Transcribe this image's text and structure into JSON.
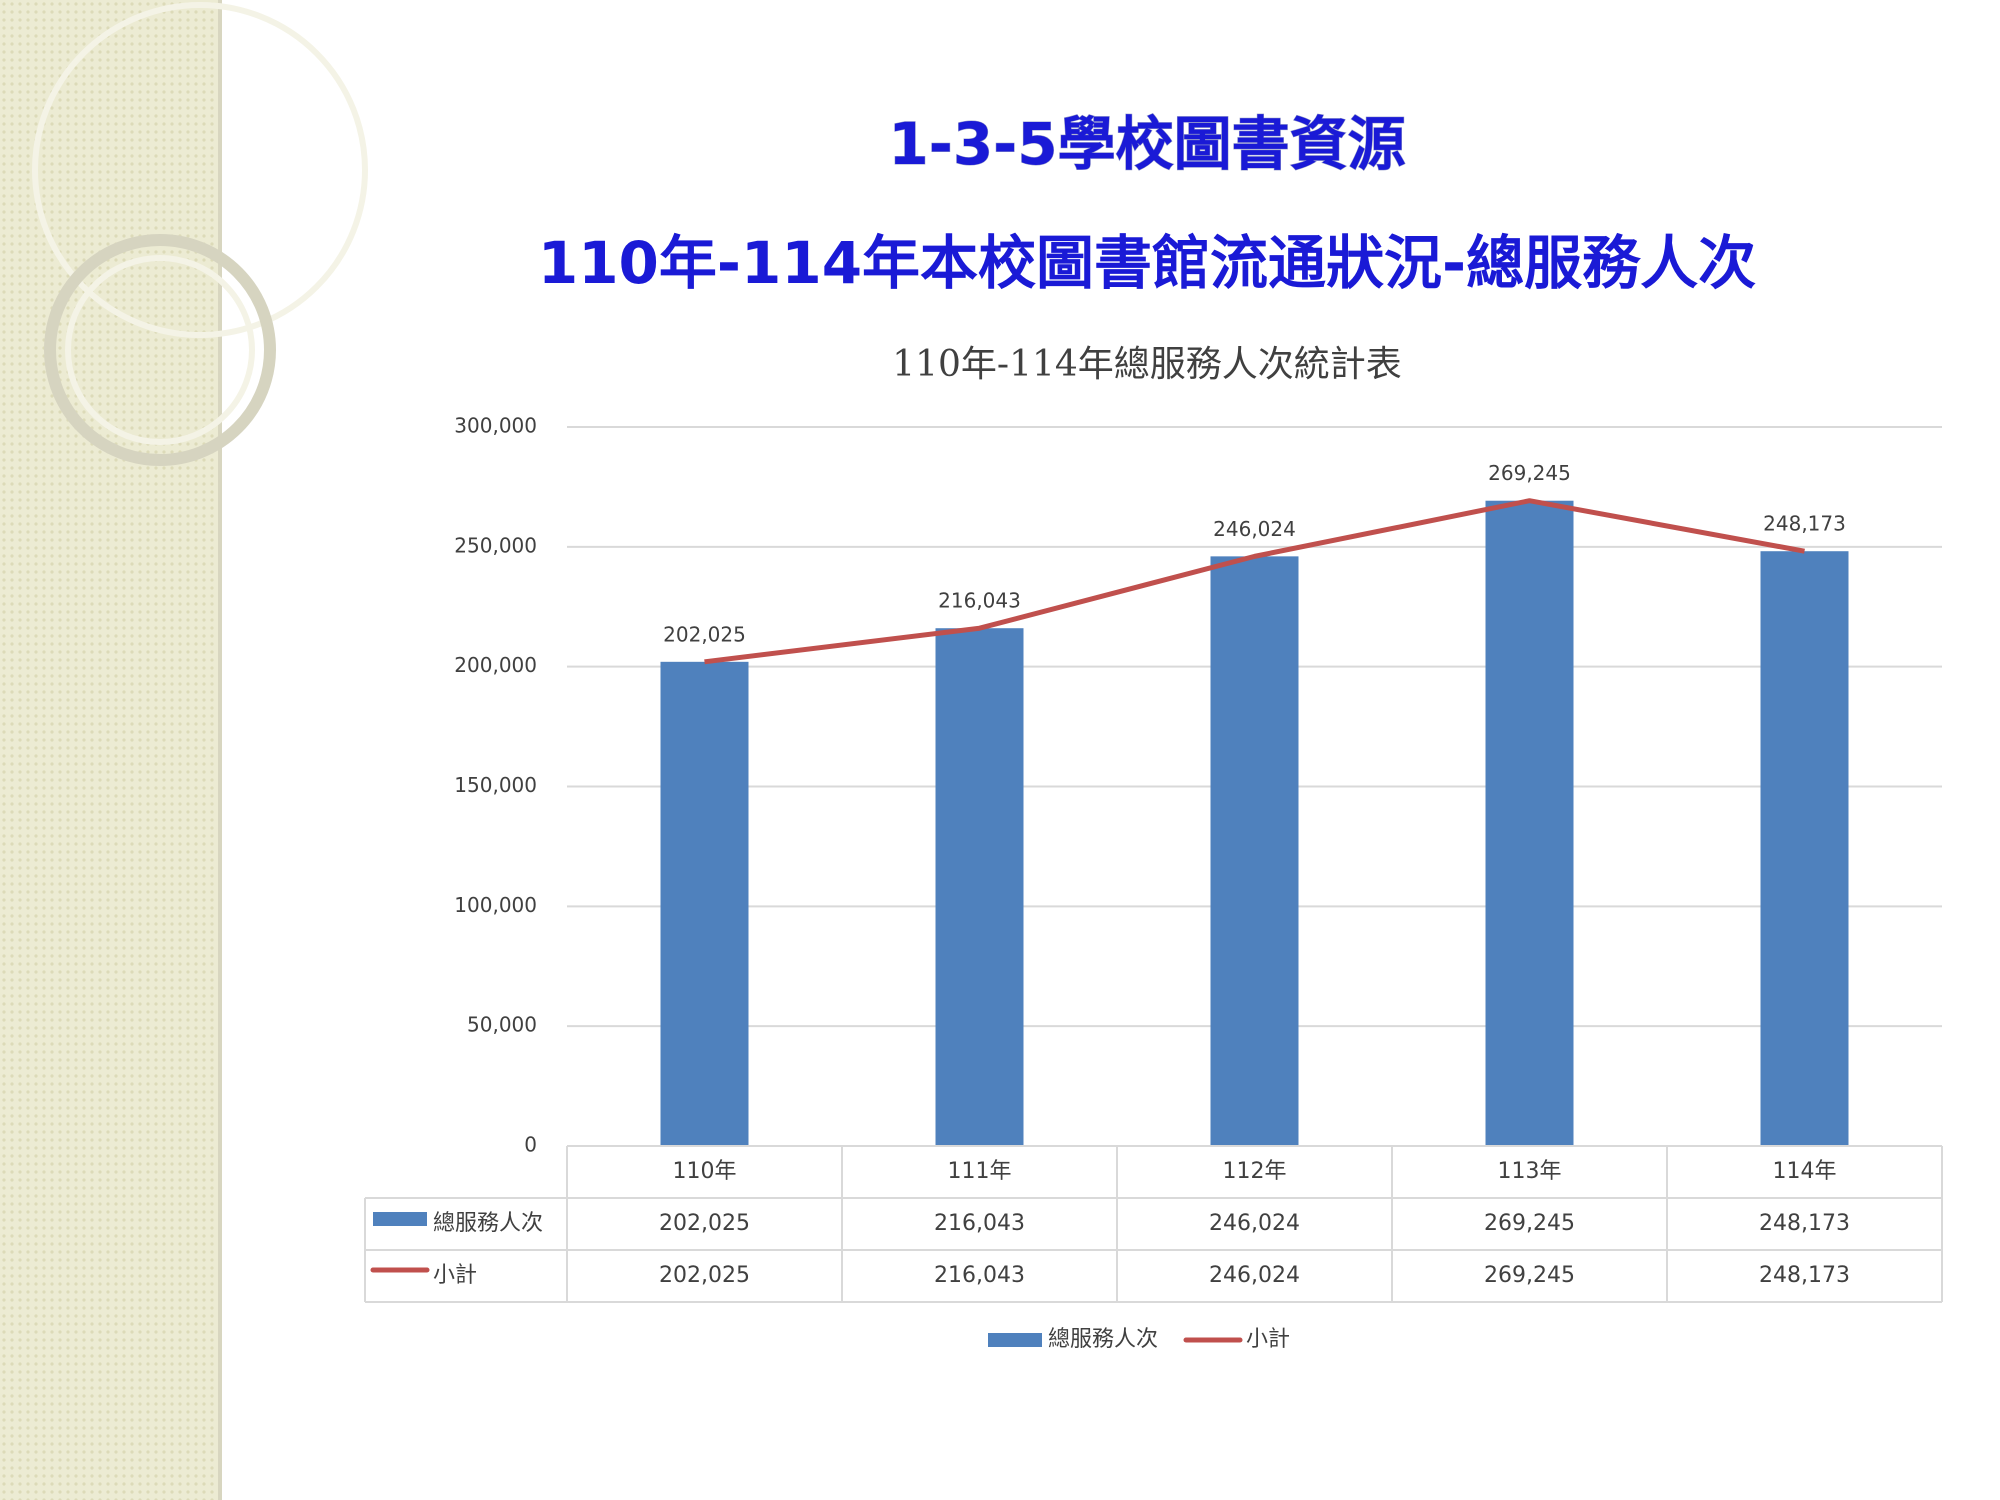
{
  "slide": {
    "title": "1-3-5學校圖書資源",
    "subtitle": "110年-114年本校圖書館流通狀況-總服務人次"
  },
  "chart_data": {
    "type": "bar",
    "title": "110年-114年總服務人次統計表",
    "categories": [
      "110年",
      "111年",
      "112年",
      "113年",
      "114年"
    ],
    "series": [
      {
        "name": "總服務人次",
        "type": "bar",
        "color": "#4f81bd",
        "values": [
          202025,
          216043,
          246024,
          269245,
          248173
        ],
        "value_labels": [
          "202,025",
          "216,043",
          "246,024",
          "269,245",
          "248,173"
        ]
      },
      {
        "name": "小計",
        "type": "line",
        "color": "#c0504d",
        "values": [
          202025,
          216043,
          246024,
          269245,
          248173
        ],
        "value_labels": [
          "202,025",
          "216,043",
          "246,024",
          "269,245",
          "248,173"
        ]
      }
    ],
    "ylim": [
      0,
      300000
    ],
    "yticks": [
      0,
      {
        "value": 50000,
        "label": "50,000"
      },
      {
        "value": 100000,
        "label": "100,000"
      },
      {
        "value": 150000,
        "label": "150,000"
      },
      {
        "value": 200000,
        "label": "200,000"
      },
      {
        "value": 250000,
        "label": "250,000"
      },
      {
        "value": 300000,
        "label": "300,000"
      }
    ],
    "grid": true,
    "legend": "bottom",
    "data_table": true
  }
}
